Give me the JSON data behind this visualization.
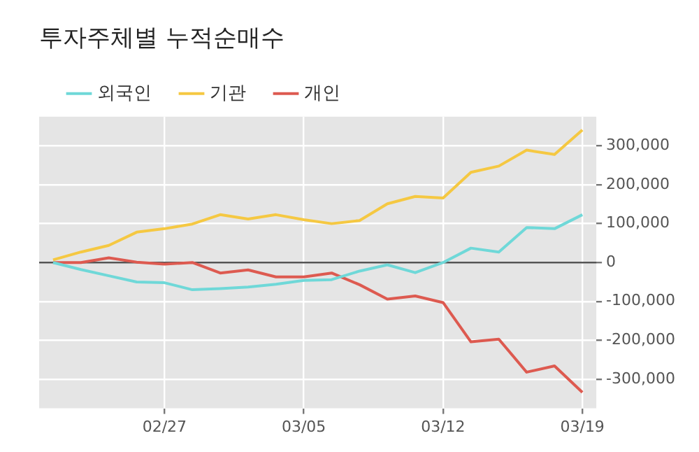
{
  "chart_data": {
    "type": "line",
    "title": "투자주체별 누적순매수",
    "categories": [
      null,
      null,
      null,
      null,
      "02/27",
      null,
      null,
      null,
      null,
      "03/05",
      null,
      null,
      null,
      null,
      "03/12",
      null,
      null,
      null,
      null,
      "03/19"
    ],
    "series": [
      {
        "name": "외국인",
        "color": "#6fd8d8",
        "values": [
          0,
          -18000,
          -34000,
          -50000,
          -52000,
          -70000,
          -67000,
          -63000,
          -56000,
          -46000,
          -44000,
          -22000,
          -6000,
          -26000,
          0,
          37000,
          27000,
          90000,
          87000,
          123000
        ]
      },
      {
        "name": "기관",
        "color": "#f5c842",
        "values": [
          7000,
          27000,
          44000,
          78000,
          87000,
          99000,
          123000,
          112000,
          123000,
          110000,
          100000,
          108000,
          151000,
          170000,
          166000,
          232000,
          248000,
          289000,
          278000,
          341000
        ]
      },
      {
        "name": "개인",
        "color": "#dd5a50",
        "values": [
          0,
          0,
          12000,
          1000,
          -4000,
          0,
          -27000,
          -19000,
          -37000,
          -37000,
          -27000,
          -57000,
          -94000,
          -86000,
          -103000,
          -204000,
          -197000,
          -282000,
          -266000,
          -334000
        ]
      }
    ],
    "ylim": [
      -375000,
      375000
    ],
    "yticks": [
      {
        "value": -300000,
        "label": "-300,000"
      },
      {
        "value": -200000,
        "label": "-200,000"
      },
      {
        "value": -100000,
        "label": "-100,000"
      },
      0,
      {
        "value": 100000,
        "label": "100,000"
      },
      {
        "value": 200000,
        "label": "200,000"
      },
      {
        "value": 300000,
        "label": "300,000"
      }
    ],
    "ref_lines": [
      {
        "axis": "y",
        "value": 0,
        "color": "#555555"
      }
    ],
    "grid": true,
    "legend": "top left",
    "marker": "none",
    "line_style": "solid"
  }
}
